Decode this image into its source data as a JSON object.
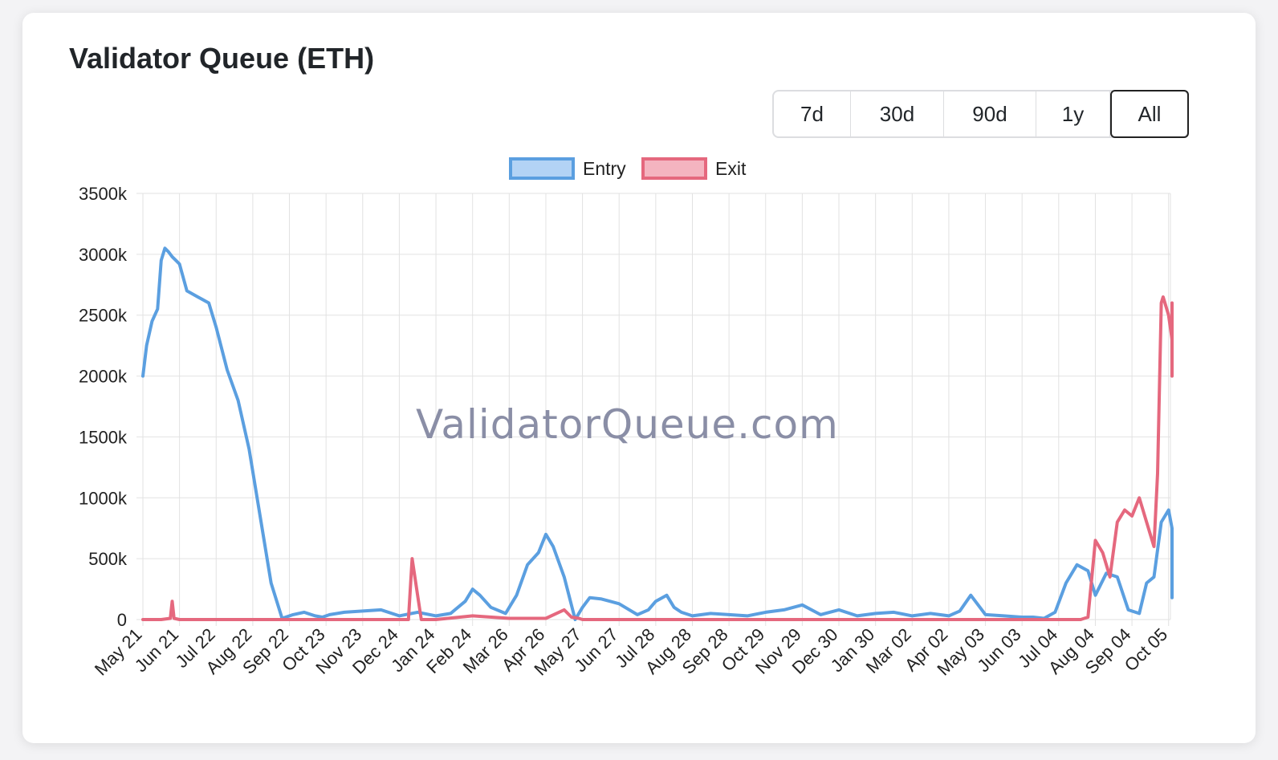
{
  "card": {
    "title": "Validator Queue (ETH)"
  },
  "range_buttons": [
    {
      "label": "7d",
      "active": false
    },
    {
      "label": "30d",
      "active": false
    },
    {
      "label": "90d",
      "active": false
    },
    {
      "label": "1y",
      "active": false
    },
    {
      "label": "All",
      "active": true
    }
  ],
  "watermark": "ValidatorQueue.com",
  "colors": {
    "entry": "#5b9fe0",
    "entry_fill": "#b3d3f5",
    "exit": "#e5687e",
    "exit_fill": "#f4b4c0",
    "grid": "#e2e2e2"
  },
  "chart_data": {
    "type": "line",
    "title": "",
    "xlabel": "",
    "ylabel": "",
    "y_tick_labels": [
      "0",
      "500k",
      "1000k",
      "1500k",
      "2000k",
      "2500k",
      "3000k",
      "3500k"
    ],
    "ylim": [
      0,
      3500
    ],
    "y_unit": "k ETH",
    "legend_position": "top",
    "categories": [
      "May 21",
      "Jun 21",
      "Jul 22",
      "Aug 22",
      "Sep 22",
      "Oct 23",
      "Nov 23",
      "Dec 24",
      "Jan 24",
      "Feb 24",
      "Mar 26",
      "Apr 26",
      "May 27",
      "Jun 27",
      "Jul 28",
      "Aug 28",
      "Sep 28",
      "Oct 29",
      "Nov 29",
      "Dec 30",
      "Jan 30",
      "Mar 02",
      "Apr 02",
      "May 03",
      "Jun 03",
      "Jul 04",
      "Aug 04",
      "Sep 04",
      "Oct 05"
    ],
    "series": [
      {
        "name": "Entry",
        "x": [
          0,
          0.1,
          0.25,
          0.4,
          0.5,
          0.6,
          0.7,
          0.8,
          0.9,
          1.0,
          1.2,
          1.5,
          1.8,
          2.0,
          2.3,
          2.6,
          2.9,
          3.2,
          3.5,
          3.8,
          4.1,
          4.4,
          4.7,
          4.9,
          5.1,
          5.5,
          6.0,
          6.5,
          7.0,
          7.5,
          8.0,
          8.4,
          8.8,
          9.0,
          9.2,
          9.5,
          9.9,
          10.2,
          10.5,
          10.8,
          11.0,
          11.2,
          11.5,
          11.8,
          12.0,
          12.2,
          12.5,
          13.0,
          13.5,
          13.8,
          14.0,
          14.3,
          14.5,
          14.7,
          15.0,
          15.5,
          16.0,
          16.5,
          17.0,
          17.5,
          18.0,
          18.5,
          19.0,
          19.5,
          20.0,
          20.5,
          21.0,
          21.5,
          22.0,
          22.3,
          22.6,
          23.0,
          23.5,
          24.0,
          24.3,
          24.6,
          24.9,
          25.2,
          25.5,
          25.8,
          26.0,
          26.3,
          26.6,
          26.9,
          27.2,
          27.4,
          27.6,
          27.8,
          28.0,
          28.2,
          28.5,
          28.7,
          28.9,
          29.0,
          29.05
        ],
        "values": [
          2000,
          2250,
          2450,
          2550,
          2950,
          3050,
          3020,
          2980,
          2950,
          2920,
          2700,
          2650,
          2600,
          2400,
          2050,
          1800,
          1400,
          850,
          300,
          10,
          40,
          60,
          30,
          20,
          40,
          60,
          70,
          80,
          30,
          60,
          30,
          50,
          150,
          250,
          200,
          100,
          50,
          200,
          450,
          550,
          700,
          600,
          350,
          0,
          100,
          180,
          170,
          130,
          40,
          80,
          150,
          200,
          100,
          60,
          30,
          50,
          40,
          30,
          60,
          80,
          120,
          40,
          80,
          30,
          50,
          60,
          30,
          50,
          30,
          70,
          200,
          40,
          30,
          20,
          20,
          10,
          60,
          300,
          450,
          400,
          200,
          380,
          350,
          80,
          50,
          300,
          350,
          800,
          900,
          750,
          450,
          300,
          180,
          180,
          450
        ]
      },
      {
        "name": "Exit",
        "x": [
          0,
          0.5,
          0.75,
          0.8,
          0.85,
          1.0,
          2.0,
          3.0,
          4.0,
          5.0,
          6.0,
          7.0,
          7.25,
          7.35,
          7.5,
          7.6,
          8.0,
          9.0,
          10.0,
          11.0,
          11.5,
          11.7,
          11.9,
          12.0,
          13.0,
          14.0,
          15.0,
          16.0,
          17.0,
          18.0,
          19.0,
          20.0,
          21.0,
          22.0,
          23.0,
          24.0,
          25.0,
          25.4,
          25.6,
          25.8,
          26.0,
          26.2,
          26.4,
          26.6,
          26.8,
          27.0,
          27.2,
          27.4,
          27.6,
          27.7,
          27.8,
          27.85,
          28.0,
          28.3,
          28.6,
          28.8,
          29.0,
          29.05,
          29.1
        ],
        "values": [
          0,
          0,
          10,
          150,
          10,
          0,
          0,
          0,
          0,
          0,
          0,
          0,
          0,
          500,
          200,
          0,
          0,
          30,
          10,
          10,
          80,
          20,
          10,
          0,
          0,
          0,
          0,
          0,
          0,
          0,
          0,
          0,
          0,
          0,
          0,
          0,
          0,
          0,
          0,
          20,
          650,
          550,
          350,
          800,
          900,
          850,
          1000,
          800,
          600,
          1200,
          2600,
          2650,
          2500,
          2300,
          2100,
          2000,
          2600,
          2400,
          2400
        ]
      }
    ]
  }
}
